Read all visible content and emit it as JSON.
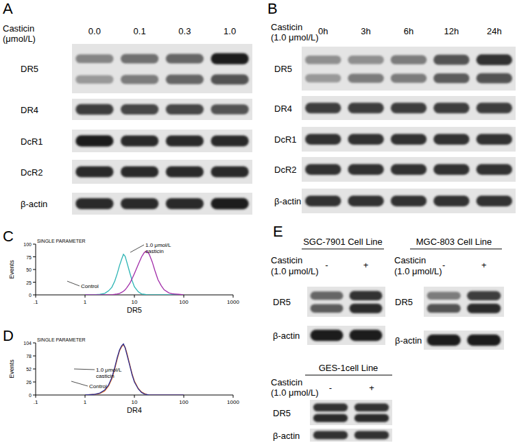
{
  "blots": [
    {
      "letter": "A",
      "treatment": [
        "Casticin",
        "(μmol/L)"
      ],
      "lanes": [
        "0.0",
        "0.1",
        "0.3",
        "1.0"
      ],
      "rows": [
        {
          "label": "DR5",
          "bands": [
            [
              0.45,
              0.55,
              0.6,
              0.95
            ],
            [
              0.35,
              0.5,
              0.6,
              0.7
            ]
          ]
        },
        {
          "label": "DR4",
          "bands": [
            [
              0.8,
              0.75,
              0.75,
              0.7
            ]
          ]
        },
        {
          "label": "DcR1",
          "bands": [
            [
              0.95,
              0.9,
              0.9,
              0.9
            ]
          ]
        },
        {
          "label": "DcR2",
          "bands": [
            [
              0.9,
              0.9,
              0.9,
              0.9
            ]
          ]
        },
        {
          "label": "β-actin",
          "bands": [
            [
              0.9,
              0.9,
              0.9,
              0.95
            ]
          ]
        }
      ]
    },
    {
      "letter": "B",
      "treatment": [
        "Casticin",
        "(1.0 μmol/L)"
      ],
      "lanes": [
        "0h",
        "3h",
        "6h",
        "12h",
        "24h"
      ],
      "rows": [
        {
          "label": "DR5",
          "bands": [
            [
              0.4,
              0.4,
              0.5,
              0.7,
              0.85
            ],
            [
              0.35,
              0.5,
              0.5,
              0.65,
              0.7
            ]
          ]
        },
        {
          "label": "DR4",
          "bands": [
            [
              0.8,
              0.8,
              0.8,
              0.8,
              0.8
            ]
          ]
        },
        {
          "label": "DcR1",
          "bands": [
            [
              0.85,
              0.85,
              0.85,
              0.85,
              0.85
            ]
          ]
        },
        {
          "label": "DcR2",
          "bands": [
            [
              0.85,
              0.85,
              0.85,
              0.85,
              0.85
            ]
          ]
        },
        {
          "label": "β-actin",
          "bands": [
            [
              0.85,
              0.85,
              0.85,
              0.85,
              0.85
            ]
          ]
        }
      ]
    },
    {
      "letter": "E",
      "title": "SGC-7901 Cell Line",
      "treatment": [
        "Casticin",
        "(1.0 μmol/L)"
      ],
      "lanes": [
        "-",
        "+"
      ],
      "rows": [
        {
          "label": "DR5",
          "bands": [
            [
              0.6,
              0.85
            ],
            [
              0.65,
              0.9
            ]
          ]
        },
        {
          "label": "β-actin",
          "bands": [
            [
              0.95,
              0.95
            ]
          ]
        }
      ]
    },
    {
      "title": "MGC-803 Cell Line",
      "treatment": [
        "Casticin",
        "(1.0 μmol/L)"
      ],
      "lanes": [
        "-",
        "+"
      ],
      "rows": [
        {
          "label": "DR5",
          "bands": [
            [
              0.5,
              0.8
            ],
            [
              0.7,
              0.9
            ]
          ]
        },
        {
          "label": "β-actin",
          "bands": [
            [
              0.95,
              0.95
            ]
          ]
        }
      ]
    },
    {
      "title": "GES-1cell Line",
      "treatment": [
        "Casticin",
        "(1.0 μmol/L)"
      ],
      "lanes": [
        "-",
        "+"
      ],
      "rows": [
        {
          "label": "DR5",
          "bands": [
            [
              0.85,
              0.85
            ],
            [
              0.9,
              0.9
            ]
          ]
        },
        {
          "label": "β-actin",
          "bands": [
            [
              0.85,
              0.85
            ]
          ]
        }
      ]
    }
  ],
  "chart_data": [
    {
      "type": "line",
      "panel_label": "C",
      "title": "SINGLE PARAMETER",
      "x_label": "DR5",
      "y_label": "Events",
      "log": "x",
      "xlim": [
        0.1,
        1000
      ],
      "xticks": [
        {
          "value": 0.1,
          "label": ".1"
        },
        1,
        10,
        100,
        1000
      ],
      "ylim": [
        0,
        100
      ],
      "yticks": [
        0,
        25,
        50,
        75,
        100
      ],
      "x": [
        1,
        1.5,
        2,
        2.5,
        3,
        3.5,
        4,
        4.5,
        5,
        5.5,
        6,
        6.5,
        7,
        8,
        9,
        10,
        12,
        14,
        16,
        18,
        20,
        23,
        26,
        30,
        35,
        40,
        50,
        60,
        80,
        100
      ],
      "series": [
        {
          "name": "Control",
          "color": "#2ab3b3",
          "values": [
            0,
            0,
            1,
            3,
            8,
            15,
            27,
            42,
            58,
            70,
            80,
            76,
            65,
            45,
            28,
            16,
            6,
            2,
            1,
            0,
            0,
            0,
            0,
            0,
            0,
            0,
            0,
            0,
            0,
            0
          ]
        },
        {
          "name": "1.0 μmol/L casticin",
          "color": "#a02aa8",
          "values": [
            0,
            0,
            0,
            0,
            0,
            0,
            1,
            2,
            3,
            5,
            7,
            10,
            14,
            22,
            32,
            42,
            60,
            75,
            84,
            86,
            80,
            65,
            48,
            30,
            18,
            10,
            4,
            2,
            1,
            0
          ]
        }
      ]
    },
    {
      "type": "line",
      "panel_label": "D",
      "title": "SINGLE PARAMETER",
      "x_label": "DR4",
      "y_label": "Events",
      "log": "x",
      "xlim": [
        0.1,
        1000
      ],
      "xticks": [
        {
          "value": 0.1,
          "label": ".1"
        },
        1,
        10,
        100,
        1000
      ],
      "ylim": [
        0,
        104
      ],
      "yticks": [
        0,
        26,
        52,
        78,
        104
      ],
      "x": [
        1,
        1.5,
        2,
        2.5,
        3,
        3.5,
        4,
        4.5,
        5,
        5.5,
        6,
        6.5,
        7,
        8,
        9,
        10,
        12,
        14,
        16,
        18,
        20,
        23,
        26,
        30,
        35,
        40,
        50,
        60,
        80,
        100
      ],
      "series": [
        {
          "name": "Control",
          "color": "#e0742a",
          "values": [
            0,
            1,
            3,
            8,
            18,
            32,
            52,
            72,
            88,
            96,
            100,
            95,
            85,
            62,
            42,
            28,
            13,
            6,
            3,
            1,
            0,
            0,
            0,
            0,
            0,
            0,
            0,
            0,
            0,
            0
          ]
        },
        {
          "name": "1.0 μmol/L casticin",
          "color": "#2a2a90",
          "values": [
            0,
            1,
            4,
            10,
            20,
            35,
            55,
            75,
            90,
            98,
            102,
            94,
            82,
            60,
            40,
            26,
            12,
            5,
            2,
            1,
            0,
            0,
            0,
            0,
            0,
            0,
            0,
            0,
            0,
            0
          ]
        }
      ]
    }
  ]
}
